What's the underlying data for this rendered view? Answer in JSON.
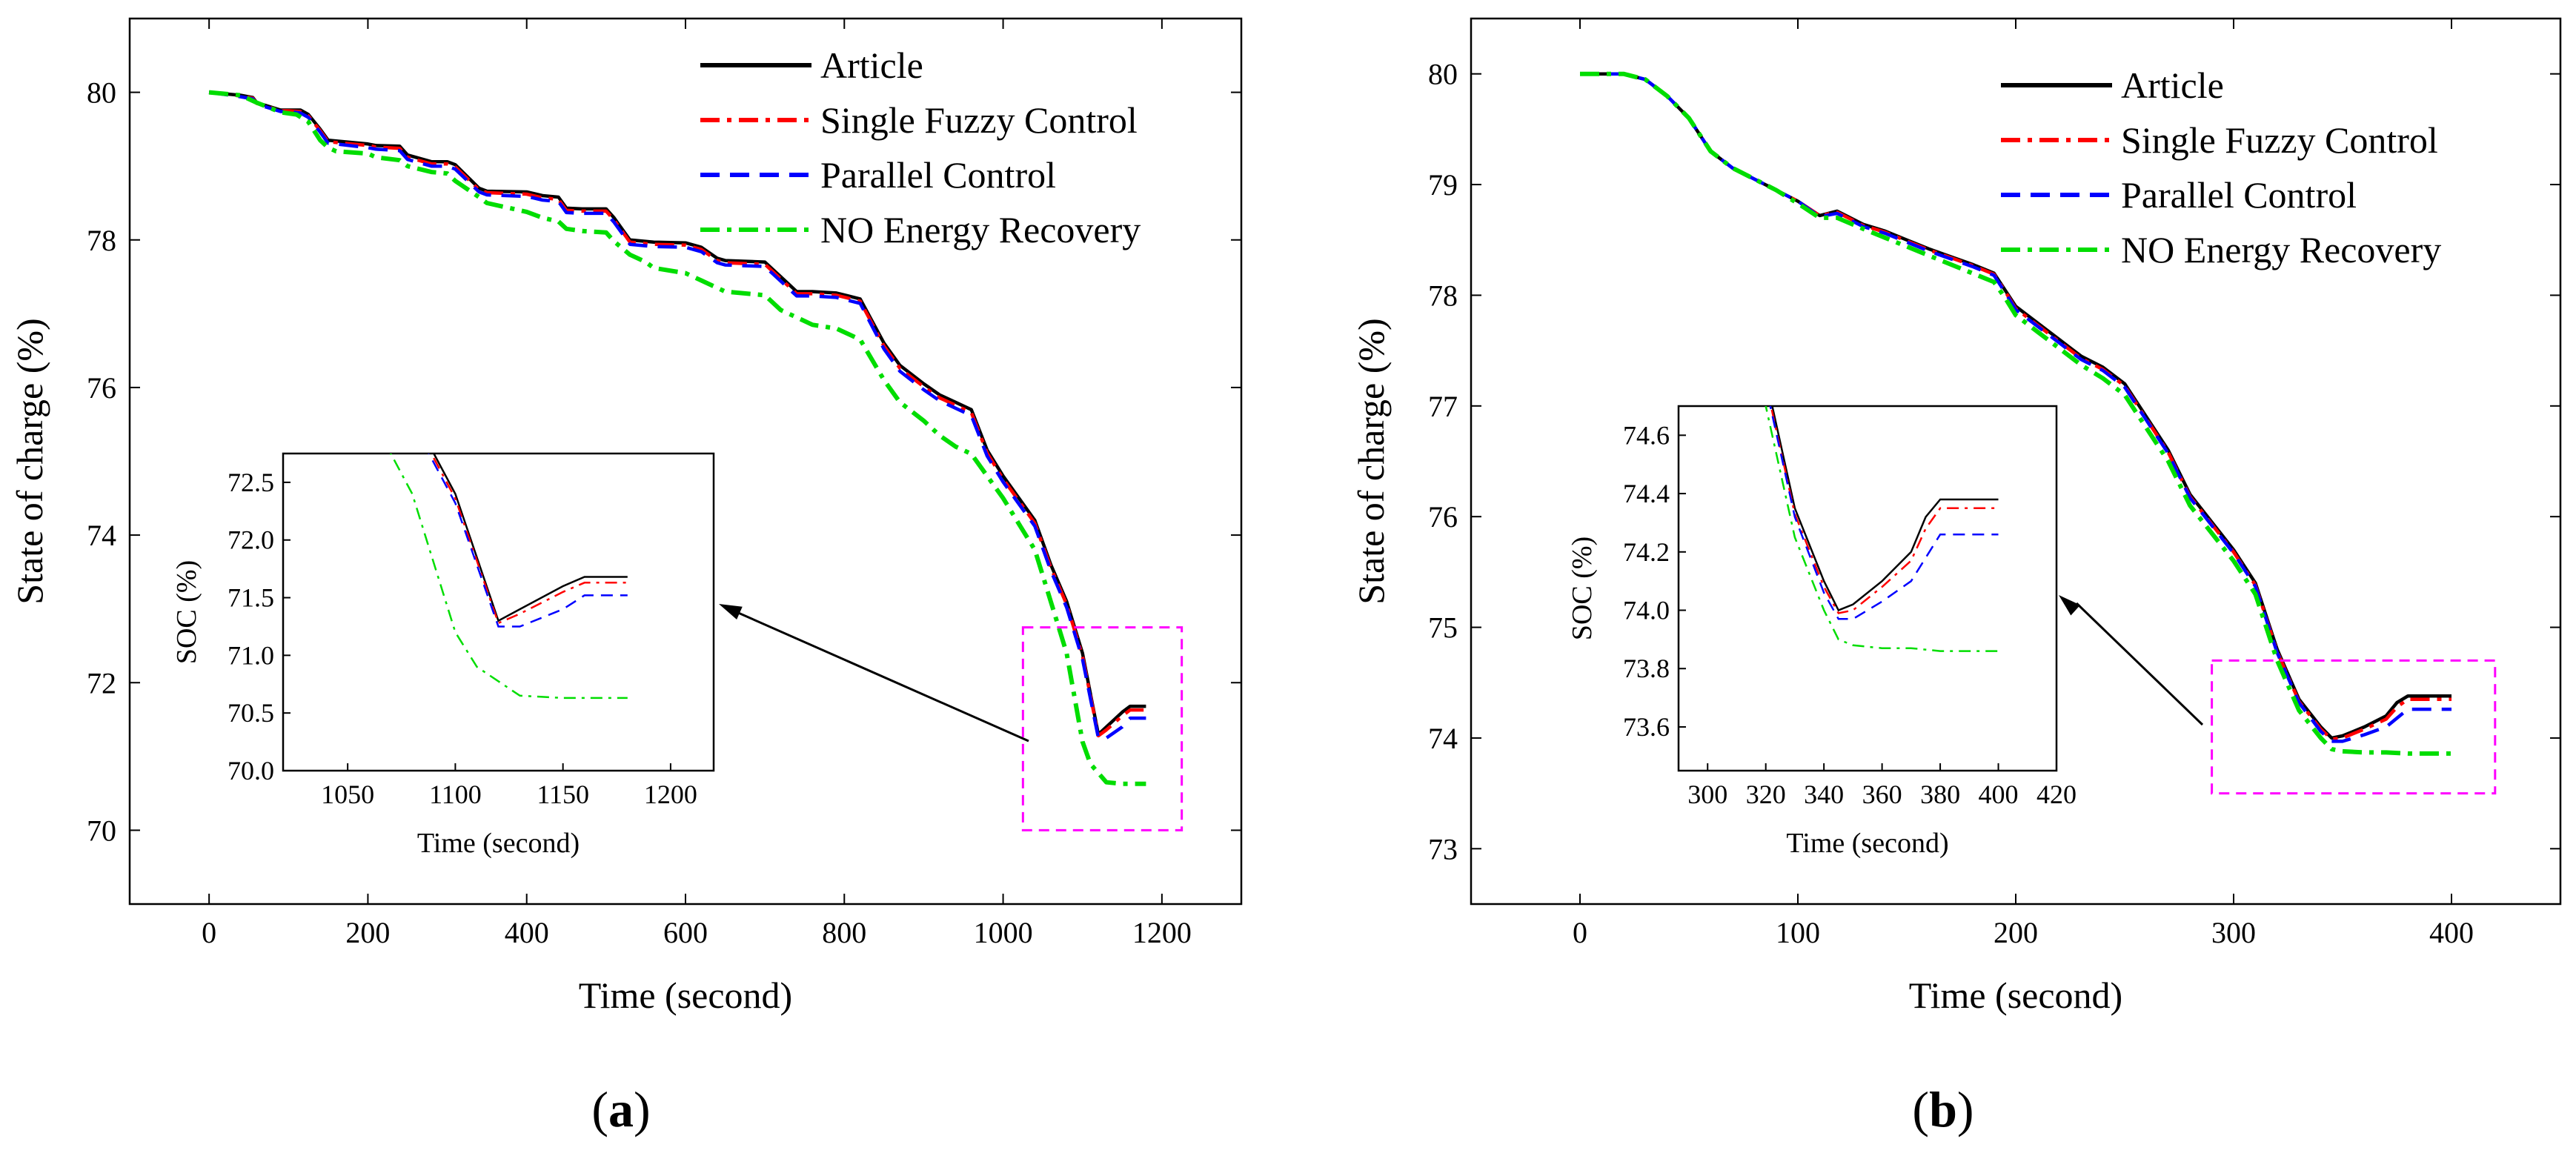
{
  "chart_data": [
    {
      "type": "line",
      "panel_label": "a",
      "xlabel": "Time (second)",
      "ylabel": "State of charge (%)",
      "xlim": [
        -100,
        1300
      ],
      "ylim": [
        69,
        81
      ],
      "xticks": [
        0,
        200,
        400,
        600,
        800,
        1000,
        1200
      ],
      "yticks": [
        70,
        72,
        74,
        76,
        78,
        80
      ],
      "legend_position": "top-right",
      "series": [
        {
          "name": "Article",
          "color": "#000000",
          "style": "solid",
          "x": [
            0,
            40,
            55,
            60,
            90,
            100,
            115,
            125,
            140,
            150,
            160,
            200,
            210,
            240,
            250,
            280,
            300,
            310,
            340,
            350,
            400,
            420,
            440,
            450,
            470,
            500,
            510,
            530,
            550,
            560,
            600,
            620,
            640,
            650,
            700,
            720,
            740,
            760,
            790,
            820,
            850,
            870,
            900,
            920,
            940,
            960,
            980,
            1000,
            1040,
            1060,
            1080,
            1100,
            1120,
            1130,
            1150,
            1160,
            1180
          ],
          "y": [
            80.0,
            79.96,
            79.93,
            79.86,
            79.76,
            79.76,
            79.76,
            79.7,
            79.5,
            79.35,
            79.34,
            79.3,
            79.28,
            79.27,
            79.15,
            79.06,
            79.06,
            79.02,
            78.7,
            78.66,
            78.65,
            78.6,
            78.58,
            78.43,
            78.42,
            78.42,
            78.3,
            78.0,
            77.98,
            77.97,
            77.96,
            77.9,
            77.75,
            77.72,
            77.7,
            77.5,
            77.3,
            77.3,
            77.28,
            77.2,
            76.6,
            76.3,
            76.05,
            75.9,
            75.8,
            75.7,
            75.15,
            74.8,
            74.2,
            73.6,
            73.1,
            72.4,
            71.3,
            71.4,
            71.6,
            71.68,
            71.68
          ]
        },
        {
          "name": "Single Fuzzy Control",
          "color": "#ff0000",
          "style": "dashdot",
          "x": [
            0,
            40,
            55,
            60,
            90,
            100,
            115,
            125,
            140,
            150,
            160,
            200,
            210,
            240,
            250,
            280,
            300,
            310,
            340,
            350,
            400,
            420,
            440,
            450,
            470,
            500,
            510,
            530,
            550,
            560,
            600,
            620,
            640,
            650,
            700,
            720,
            740,
            760,
            790,
            820,
            850,
            870,
            900,
            920,
            940,
            960,
            980,
            1000,
            1040,
            1060,
            1080,
            1100,
            1120,
            1130,
            1150,
            1160,
            1180
          ],
          "y": [
            80.0,
            79.95,
            79.92,
            79.85,
            79.75,
            79.75,
            79.74,
            79.68,
            79.48,
            79.33,
            79.32,
            79.28,
            79.26,
            79.24,
            79.12,
            79.03,
            79.03,
            78.99,
            78.68,
            78.64,
            78.62,
            78.57,
            78.55,
            78.4,
            78.39,
            78.39,
            78.27,
            77.97,
            77.95,
            77.94,
            77.93,
            77.87,
            77.72,
            77.69,
            77.67,
            77.47,
            77.27,
            77.27,
            77.25,
            77.17,
            76.56,
            76.26,
            76.01,
            75.86,
            75.76,
            75.66,
            75.11,
            74.76,
            74.16,
            73.56,
            73.06,
            72.36,
            71.28,
            71.36,
            71.55,
            71.63,
            71.63
          ]
        },
        {
          "name": "Parallel Control",
          "color": "#0000ff",
          "style": "dashed",
          "x": [
            0,
            40,
            55,
            60,
            90,
            100,
            115,
            125,
            140,
            150,
            160,
            200,
            210,
            240,
            250,
            280,
            300,
            310,
            340,
            350,
            400,
            420,
            440,
            450,
            470,
            500,
            510,
            530,
            550,
            560,
            600,
            620,
            640,
            650,
            700,
            720,
            740,
            760,
            790,
            820,
            850,
            870,
            900,
            920,
            940,
            960,
            980,
            1000,
            1040,
            1060,
            1080,
            1100,
            1120,
            1130,
            1150,
            1160,
            1180
          ],
          "y": [
            80.0,
            79.94,
            79.91,
            79.84,
            79.74,
            79.74,
            79.72,
            79.66,
            79.46,
            79.31,
            79.3,
            79.25,
            79.23,
            79.21,
            79.09,
            79.0,
            79.0,
            78.96,
            78.65,
            78.61,
            78.59,
            78.54,
            78.52,
            78.37,
            78.36,
            78.36,
            78.24,
            77.94,
            77.92,
            77.91,
            77.9,
            77.84,
            77.69,
            77.66,
            77.64,
            77.44,
            77.24,
            77.24,
            77.22,
            77.14,
            76.52,
            76.22,
            75.97,
            75.82,
            75.72,
            75.62,
            75.07,
            74.72,
            74.12,
            73.52,
            73.02,
            72.32,
            71.25,
            71.25,
            71.4,
            71.52,
            71.52
          ]
        },
        {
          "name": "NO Energy Recovery",
          "color": "#00dd00",
          "style": "dashdot",
          "x": [
            0,
            40,
            60,
            90,
            110,
            125,
            140,
            150,
            160,
            200,
            210,
            240,
            250,
            280,
            300,
            310,
            340,
            350,
            400,
            420,
            440,
            450,
            470,
            500,
            510,
            530,
            550,
            560,
            600,
            620,
            640,
            650,
            700,
            720,
            740,
            760,
            790,
            820,
            850,
            870,
            900,
            920,
            940,
            960,
            980,
            1000,
            1040,
            1060,
            1080,
            1100,
            1110,
            1130,
            1150,
            1180
          ],
          "y": [
            80.0,
            79.96,
            79.86,
            79.73,
            79.7,
            79.6,
            79.35,
            79.25,
            79.2,
            79.17,
            79.12,
            79.08,
            79.0,
            78.92,
            78.9,
            78.8,
            78.58,
            78.5,
            78.38,
            78.3,
            78.25,
            78.15,
            78.12,
            78.1,
            77.98,
            77.8,
            77.7,
            77.62,
            77.55,
            77.45,
            77.35,
            77.3,
            77.25,
            77.05,
            76.95,
            76.85,
            76.8,
            76.65,
            76.1,
            75.8,
            75.55,
            75.35,
            75.2,
            75.1,
            74.8,
            74.5,
            73.8,
            73.1,
            72.4,
            71.2,
            70.9,
            70.65,
            70.63,
            70.63
          ]
        }
      ],
      "inset": {
        "xlabel": "Time (second)",
        "ylabel": "SOC (%)",
        "xlim": [
          1020,
          1220
        ],
        "ylim": [
          70.0,
          72.75
        ],
        "xticks": [
          1050,
          1100,
          1150,
          1200
        ],
        "yticks": [
          70.0,
          70.5,
          71.0,
          71.5,
          72.0,
          72.5
        ],
        "zoom_box": {
          "x": [
            1025,
            1225
          ],
          "y": [
            70.0,
            72.75
          ]
        }
      }
    },
    {
      "type": "line",
      "panel_label": "b",
      "xlabel": "Time (second)",
      "ylabel": "State of charge (%)",
      "xlim": [
        -50,
        450
      ],
      "ylim": [
        72.5,
        80.5
      ],
      "xticks": [
        0,
        100,
        200,
        300,
        400
      ],
      "yticks": [
        73,
        74,
        75,
        76,
        77,
        78,
        79,
        80
      ],
      "legend_position": "top-right",
      "series": [
        {
          "name": "Article",
          "color": "#000000",
          "style": "solid",
          "x": [
            0,
            10,
            20,
            30,
            40,
            50,
            60,
            70,
            80,
            90,
            100,
            110,
            118,
            130,
            140,
            150,
            160,
            170,
            180,
            190,
            195,
            200,
            210,
            220,
            230,
            240,
            250,
            260,
            270,
            280,
            290,
            300,
            310,
            320,
            330,
            340,
            345,
            350,
            360,
            370,
            375,
            380,
            390,
            400
          ],
          "y": [
            80.0,
            80.0,
            80.0,
            79.95,
            79.8,
            79.6,
            79.3,
            79.15,
            79.05,
            78.95,
            78.85,
            78.72,
            78.76,
            78.64,
            78.58,
            78.5,
            78.42,
            78.35,
            78.28,
            78.2,
            78.05,
            77.9,
            77.75,
            77.6,
            77.45,
            77.35,
            77.2,
            76.9,
            76.6,
            76.2,
            75.95,
            75.7,
            75.4,
            74.8,
            74.35,
            74.1,
            74.0,
            74.02,
            74.1,
            74.2,
            74.32,
            74.38,
            74.38,
            74.38
          ]
        },
        {
          "name": "Single Fuzzy Control",
          "color": "#ff0000",
          "style": "dashdot",
          "x": [
            0,
            10,
            20,
            30,
            40,
            50,
            60,
            70,
            80,
            90,
            100,
            110,
            118,
            130,
            140,
            150,
            160,
            170,
            180,
            190,
            195,
            200,
            210,
            220,
            230,
            240,
            250,
            260,
            270,
            280,
            290,
            300,
            310,
            320,
            330,
            340,
            345,
            350,
            360,
            370,
            375,
            380,
            390,
            400
          ],
          "y": [
            80.0,
            80.0,
            80.0,
            79.95,
            79.8,
            79.6,
            79.3,
            79.15,
            79.05,
            78.95,
            78.85,
            78.72,
            78.75,
            78.63,
            78.57,
            78.49,
            78.41,
            78.34,
            78.27,
            78.19,
            78.04,
            77.88,
            77.73,
            77.58,
            77.43,
            77.33,
            77.18,
            76.88,
            76.58,
            76.18,
            75.93,
            75.68,
            75.38,
            74.78,
            74.33,
            74.08,
            73.99,
            74.0,
            74.08,
            74.17,
            74.28,
            74.35,
            74.35,
            74.35
          ]
        },
        {
          "name": "Parallel Control",
          "color": "#0000ff",
          "style": "dashed",
          "x": [
            0,
            10,
            20,
            30,
            40,
            50,
            60,
            70,
            80,
            90,
            100,
            110,
            118,
            130,
            140,
            150,
            160,
            170,
            180,
            190,
            195,
            200,
            210,
            220,
            230,
            240,
            250,
            260,
            270,
            280,
            290,
            300,
            310,
            320,
            330,
            340,
            345,
            350,
            360,
            370,
            375,
            380,
            390,
            400
          ],
          "y": [
            80.0,
            80.0,
            80.0,
            79.95,
            79.8,
            79.6,
            79.3,
            79.15,
            79.05,
            78.95,
            78.85,
            78.71,
            78.74,
            78.62,
            78.56,
            78.48,
            78.4,
            78.33,
            78.26,
            78.18,
            78.03,
            77.87,
            77.72,
            77.57,
            77.42,
            77.32,
            77.17,
            76.87,
            76.57,
            76.17,
            75.92,
            75.67,
            75.37,
            74.77,
            74.32,
            74.06,
            73.97,
            73.97,
            74.03,
            74.1,
            74.18,
            74.26,
            74.26,
            74.26
          ]
        },
        {
          "name": "NO Energy Recovery",
          "color": "#00dd00",
          "style": "dashdot",
          "x": [
            0,
            10,
            20,
            30,
            40,
            50,
            60,
            70,
            80,
            90,
            100,
            110,
            118,
            130,
            140,
            150,
            160,
            170,
            180,
            190,
            195,
            200,
            210,
            220,
            230,
            240,
            250,
            260,
            270,
            280,
            290,
            300,
            310,
            320,
            330,
            340,
            345,
            350,
            360,
            370,
            380,
            390,
            400
          ],
          "y": [
            80.0,
            80.0,
            80.0,
            79.95,
            79.8,
            79.6,
            79.3,
            79.15,
            79.05,
            78.95,
            78.83,
            78.7,
            78.7,
            78.6,
            78.52,
            78.44,
            78.36,
            78.28,
            78.2,
            78.12,
            77.98,
            77.82,
            77.67,
            77.52,
            77.37,
            77.25,
            77.1,
            76.8,
            76.5,
            76.1,
            75.85,
            75.6,
            75.3,
            74.7,
            74.25,
            74.0,
            73.9,
            73.88,
            73.87,
            73.87,
            73.86,
            73.86,
            73.86
          ]
        }
      ],
      "inset": {
        "xlabel": "Time (second)",
        "ylabel": "SOC (%)",
        "xlim": [
          290,
          420
        ],
        "ylim": [
          73.45,
          74.7
        ],
        "xticks": [
          300,
          320,
          340,
          360,
          380,
          400,
          420
        ],
        "yticks": [
          73.6,
          73.8,
          74.0,
          74.2,
          74.4,
          74.6
        ],
        "zoom_box": {
          "x": [
            290,
            420
          ],
          "y": [
            73.5,
            74.7
          ]
        }
      }
    }
  ]
}
